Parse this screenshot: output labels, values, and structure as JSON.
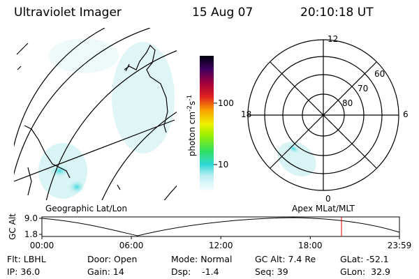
{
  "header": {
    "title": "Ultraviolet Imager",
    "date": "15 Aug 07",
    "time": "20:10:18 UT"
  },
  "colorbar": {
    "label": "photon cm",
    "exp1": "-2",
    "unit2": "s",
    "exp2": "-1",
    "scale": "log",
    "lim": [
      3.6,
      590
    ],
    "ticks": [
      10,
      100
    ]
  },
  "polar": {
    "mlt_labels": [
      "12",
      "18",
      "6",
      "0"
    ],
    "mlat_labels": [
      "60",
      "70",
      "80"
    ]
  },
  "panels": {
    "left": "Geographic Lat/Lon",
    "right": "Apex MLat/MLT"
  },
  "timeline": {
    "ylabel": "GC Alt",
    "ylim": [
      1.8,
      9.0
    ],
    "yticks": [
      {
        "value": 9.0,
        "label": "9.0"
      },
      {
        "value": 1.8,
        "label": "1.8"
      }
    ],
    "xlim": [
      0,
      23.983
    ],
    "xticks": [
      {
        "value": 0,
        "label": "00:00"
      },
      {
        "value": 6,
        "label": "06:00"
      },
      {
        "value": 12,
        "label": "12:00"
      },
      {
        "value": 18,
        "label": "18:00"
      },
      {
        "value": 23.983,
        "label": "23:59"
      }
    ]
  },
  "info": [
    [
      "Flt: LBHL",
      "Door: Open",
      "Mode: Normal",
      "GC Alt: 7.4 Re",
      "GLat: -52.1"
    ],
    [
      "IP: 36.0",
      "Gain: 14",
      "Dsp:    -1.4",
      "Seq: 39",
      "GLon:  32.9"
    ]
  ]
}
